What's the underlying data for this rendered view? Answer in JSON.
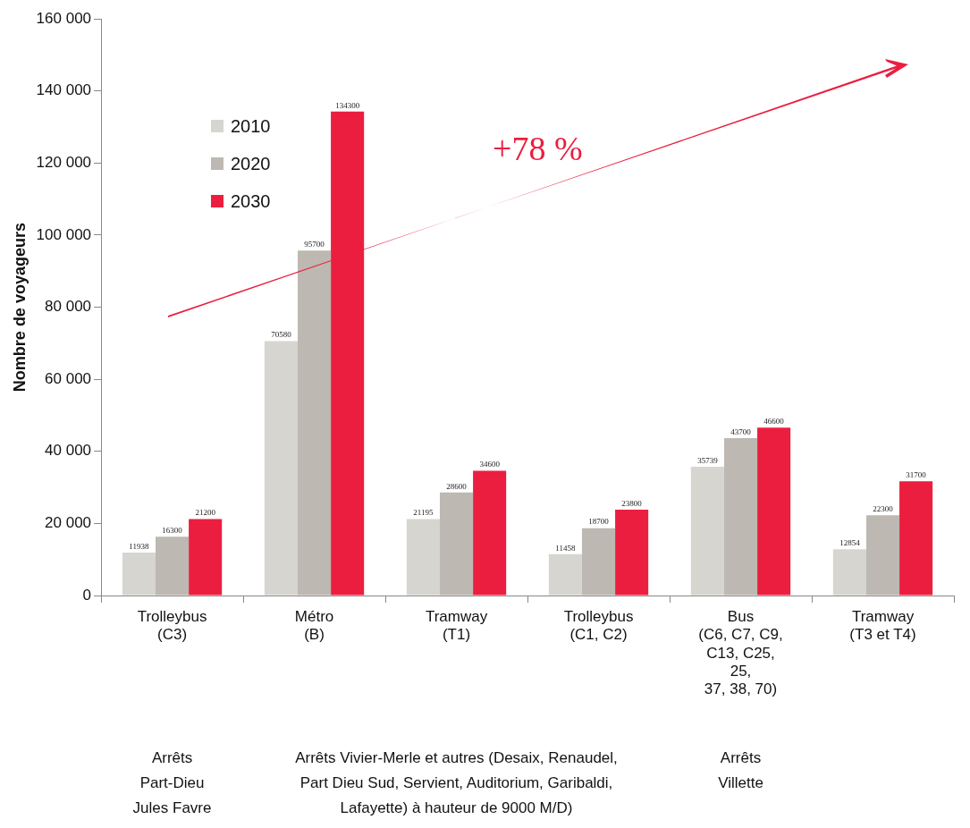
{
  "chart_data": {
    "type": "bar",
    "ylabel": "Nombre de voyageurs",
    "categories": [
      "Trolleybus\n(C3)",
      "Métro\n(B)",
      "Tramway\n(T1)",
      "Trolleybus\n(C1, C2)",
      "Bus\n(C6, C7, C9,\nC13, C25,\n25,\n37, 38, 70)",
      "Tramway\n(T3 et T4)"
    ],
    "series": [
      {
        "name": "2010",
        "color": "#d6d5d0",
        "values": [
          11938,
          70580,
          21195,
          11458,
          35739,
          12854
        ]
      },
      {
        "name": "2020",
        "color": "#bdb8b1",
        "values": [
          16300,
          95700,
          28600,
          18700,
          43700,
          22300
        ]
      },
      {
        "name": "2030",
        "color": "#eb1e3f",
        "values": [
          21200,
          134300,
          34600,
          23800,
          46600,
          31700
        ]
      }
    ],
    "ylim": [
      0,
      160000
    ],
    "yticks": [
      {
        "value": 0,
        "label": "0"
      },
      {
        "value": 20000,
        "label": "20 000"
      },
      {
        "value": 40000,
        "label": "40 000"
      },
      {
        "value": 60000,
        "label": "60 000"
      },
      {
        "value": 80000,
        "label": "80 000"
      },
      {
        "value": 100000,
        "label": "100 000"
      },
      {
        "value": 120000,
        "label": "120 000"
      },
      {
        "value": 140000,
        "label": "140 000"
      },
      {
        "value": 160000,
        "label": "160 000"
      }
    ],
    "grid": false,
    "legend": "top left",
    "data_labels": true,
    "annotations": [
      "Arrêts\nPart-Dieu\nJules Favre",
      "Arrêts Vivier-Merle et autres (Desaix, Renaudel,\nPart Dieu Sud, Servient, Auditorium, Garibaldi,\nLafayette) à hauteur de 9000 M/D)",
      "Arrêts\nVillette",
      "+78 %"
    ]
  }
}
